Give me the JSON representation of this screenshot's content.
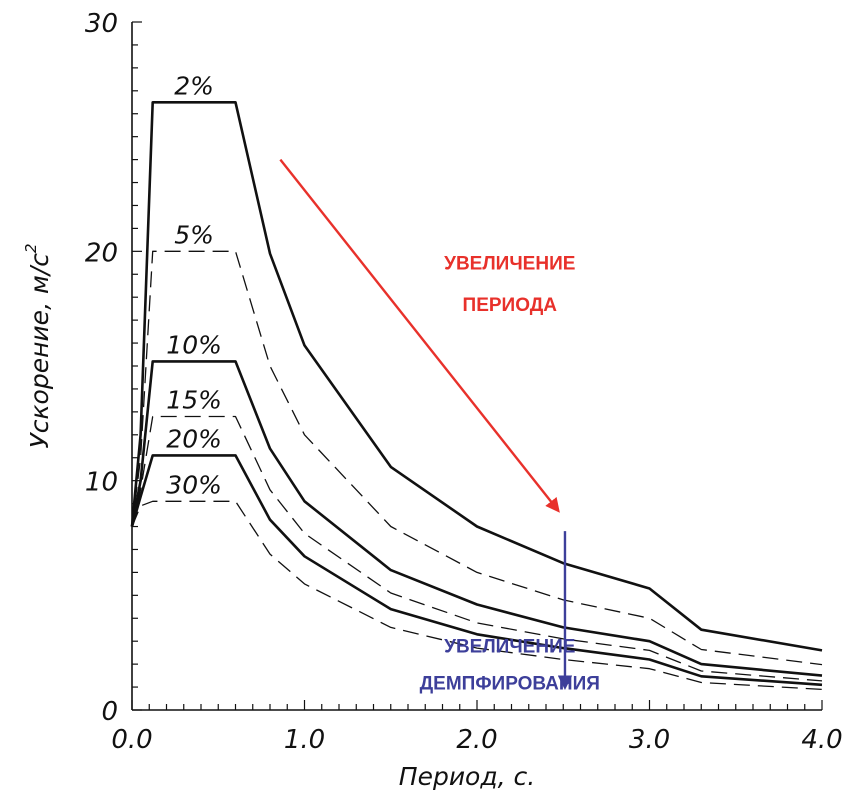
{
  "chart_data": {
    "type": "line",
    "title": "",
    "xlabel": "Период, с.",
    "ylabel_main": "Ускорение, м/с",
    "ylabel_sup": "2",
    "xlim": [
      0,
      4
    ],
    "ylim": [
      0,
      30
    ],
    "x_ticks": [
      0,
      1,
      2,
      3,
      4
    ],
    "x_tick_labels": [
      "0.0",
      "1.0",
      "2.0",
      "3.0",
      "4.0"
    ],
    "y_ticks": [
      0,
      10,
      20,
      30
    ],
    "y_tick_labels": [
      "0",
      "10",
      "20",
      "30"
    ],
    "grid": false,
    "x": [
      0.0,
      0.05,
      0.12,
      0.6,
      0.8,
      1.0,
      1.5,
      2.0,
      2.5,
      3.0,
      3.3,
      4.0
    ],
    "series": [
      {
        "name": "2%",
        "style": "solid",
        "values": [
          8.0,
          12.0,
          26.5,
          26.5,
          19.9,
          15.9,
          10.6,
          8.0,
          6.4,
          5.3,
          3.5,
          2.6
        ]
      },
      {
        "name": "5%",
        "style": "dashed",
        "values": [
          8.0,
          11.0,
          20.0,
          20.0,
          15.0,
          12.0,
          8.0,
          6.0,
          4.8,
          4.0,
          2.64,
          1.98
        ]
      },
      {
        "name": "10%",
        "style": "solid",
        "values": [
          8.0,
          10.0,
          15.2,
          15.2,
          11.4,
          9.1,
          6.1,
          4.6,
          3.6,
          3.0,
          2.0,
          1.5
        ]
      },
      {
        "name": "15%",
        "style": "dashed",
        "values": [
          8.0,
          9.6,
          12.8,
          12.8,
          9.6,
          7.7,
          5.1,
          3.8,
          3.1,
          2.6,
          1.7,
          1.27
        ]
      },
      {
        "name": "20%",
        "style": "solid",
        "values": [
          8.0,
          9.3,
          11.1,
          11.1,
          8.3,
          6.7,
          4.4,
          3.3,
          2.7,
          2.2,
          1.47,
          1.1
        ]
      },
      {
        "name": "30%",
        "style": "dashed",
        "values": [
          8.0,
          8.9,
          9.1,
          9.1,
          6.8,
          5.5,
          3.6,
          2.7,
          2.2,
          1.8,
          1.2,
          0.9
        ]
      }
    ],
    "annotations": [
      {
        "text_lines": [
          "УВЕЛИЧЕНИЕ",
          "ПЕРИОДА"
        ],
        "color": "#e8312b"
      },
      {
        "text_lines": [
          "УВЕЛИЧЕНИЕ",
          "ДЕМПФИРОВАНИЯ"
        ],
        "color": "#3d3f9a"
      }
    ],
    "colors": {
      "curve": "#111111",
      "period_arrow": "#e8312b",
      "damping_arrow": "#3d3f9a"
    }
  }
}
